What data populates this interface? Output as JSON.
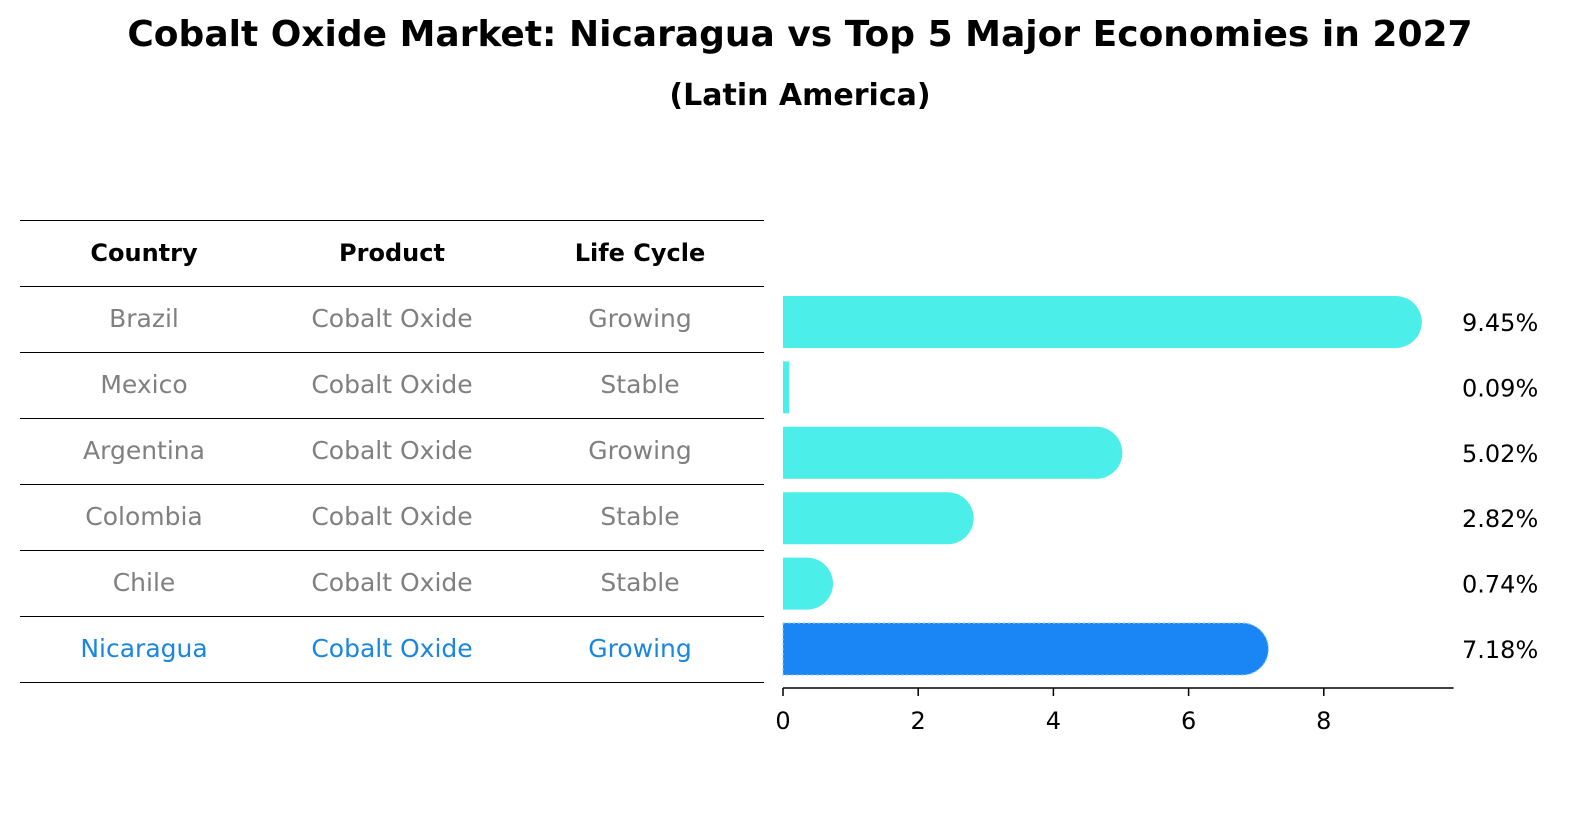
{
  "title": "Cobalt Oxide Market: Nicaragua vs Top 5 Major Economies in 2027",
  "subtitle": "(Latin America)",
  "table": {
    "headers": [
      "Country",
      "Product",
      "Life Cycle"
    ],
    "rows": [
      [
        "Brazil",
        "Cobalt Oxide",
        "Growing"
      ],
      [
        "Mexico",
        "Cobalt Oxide",
        "Stable"
      ],
      [
        "Argentina",
        "Cobalt Oxide",
        "Growing"
      ],
      [
        "Colombia",
        "Cobalt Oxide",
        "Stable"
      ],
      [
        "Chile",
        "Cobalt Oxide",
        "Stable"
      ],
      [
        "Nicaragua",
        "Cobalt Oxide",
        "Growing"
      ]
    ]
  },
  "colors": {
    "bar": "#4ceee9",
    "highlight": "#1a86f5",
    "highlight_text": "#1a86e0",
    "row_text": "#808080"
  },
  "chart_data": {
    "type": "bar",
    "orientation": "horizontal",
    "categories": [
      "Brazil",
      "Mexico",
      "Argentina",
      "Colombia",
      "Chile",
      "Nicaragua"
    ],
    "values": [
      9.45,
      0.09,
      5.02,
      2.82,
      0.74,
      7.18
    ],
    "labels": [
      "9.45%",
      "0.09%",
      "5.02%",
      "2.82%",
      "0.74%",
      "7.18%"
    ],
    "highlight": "Nicaragua",
    "xlim": [
      0,
      9.92
    ],
    "xticks": [
      0,
      2,
      4,
      6,
      8
    ],
    "xtick_labels": [
      "0",
      "2",
      "4",
      "6",
      "8"
    ],
    "xlabel": "",
    "ylabel": "",
    "grid": false
  }
}
